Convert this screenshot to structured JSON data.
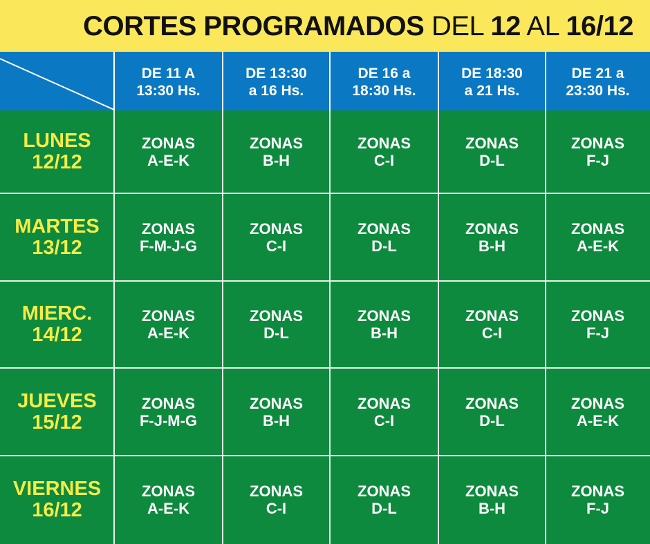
{
  "title": {
    "cortes": "CORTES",
    "programados": "PROGRAMADOS",
    "del": "DEL",
    "start": "12",
    "al": "AL",
    "end": "16/12"
  },
  "time_slots": [
    "DE 11 A\n13:30 Hs.",
    "DE 13:30\na 16 Hs.",
    "DE 16 a\n18:30 Hs.",
    "DE 18:30\na 21 Hs.",
    "DE 21 a\n23:30 Hs."
  ],
  "days": [
    {
      "label": "LUNES\n12/12",
      "zones": [
        "ZONAS\nA-E-K",
        "ZONAS\nB-H",
        "ZONAS\nC-I",
        "ZONAS\nD-L",
        "ZONAS\nF-J"
      ]
    },
    {
      "label": "MARTES\n13/12",
      "zones": [
        "ZONAS\nF-M-J-G",
        "ZONAS\nC-I",
        "ZONAS\nD-L",
        "ZONAS\nB-H",
        "ZONAS\nA-E-K"
      ]
    },
    {
      "label": "MIERC.\n14/12",
      "zones": [
        "ZONAS\nA-E-K",
        "ZONAS\nD-L",
        "ZONAS\nB-H",
        "ZONAS\nC-I",
        "ZONAS\nF-J"
      ]
    },
    {
      "label": "JUEVES\n15/12",
      "zones": [
        "ZONAS\nF-J-M-G",
        "ZONAS\nB-H",
        "ZONAS\nC-I",
        "ZONAS\nD-L",
        "ZONAS\nA-E-K"
      ]
    },
    {
      "label": "VIERNES\n16/12",
      "zones": [
        "ZONAS\nA-E-K",
        "ZONAS\nC-I",
        "ZONAS\nD-L",
        "ZONAS\nB-H",
        "ZONAS\nF-J"
      ]
    }
  ],
  "colors": {
    "title_bg": "#fbe85a",
    "header_bg": "#0b78c3",
    "body_bg": "#0e8a3e",
    "day_text": "#f6ec48",
    "zone_text": "#ffffff"
  }
}
